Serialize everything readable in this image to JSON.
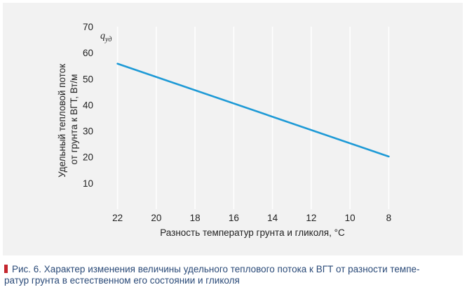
{
  "chart_data": {
    "type": "line",
    "title": "",
    "series_label": "q",
    "series_label_sub": "уд",
    "ylabel_line1": "Удельный тепловой поток",
    "ylabel_line2": "от грунта к ВГТ, Вт/м",
    "xlabel": "Разность температур грунта и гликоля, °С",
    "xlim": [
      23,
      7
    ],
    "ylim": [
      0,
      70
    ],
    "x_ticks": [
      22,
      20,
      18,
      16,
      14,
      12,
      10,
      8
    ],
    "y_ticks": [
      10,
      20,
      30,
      40,
      50,
      60,
      70
    ],
    "grid": "vertical",
    "series": [
      {
        "x": [
          22,
          8
        ],
        "y": [
          55.8,
          20.2
        ]
      }
    ],
    "colors": {
      "line": "#1e9ad6",
      "grid": "#ffffff",
      "panel": "#f2f2f2"
    }
  },
  "caption": {
    "line1": "Рис. 6. Характер изменения величины удельного теплового потока к ВГТ от разности темпе-",
    "line2": "ратур грунта в естественном его состоянии и гликоля",
    "marker_color": "#c4262e"
  }
}
